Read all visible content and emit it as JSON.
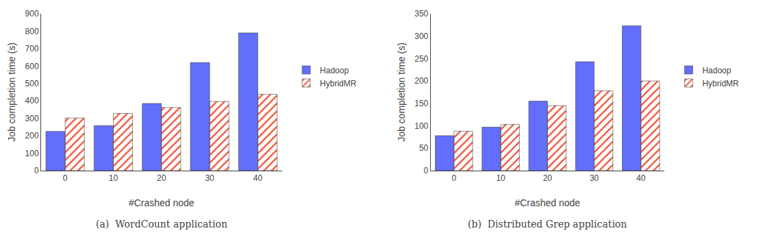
{
  "chart_data": [
    {
      "type": "bar",
      "title": "(a)  WordCount application",
      "categories": [
        0,
        10,
        20,
        30,
        40
      ],
      "xlabel": "#Crashed node",
      "ylabel": "Job completion time (s)",
      "series": [
        {
          "name": "Hadoop",
          "values": [
            225,
            258,
            385,
            620,
            790
          ]
        },
        {
          "name": "HybridMR",
          "values": [
            302,
            328,
            362,
            397,
            438
          ]
        }
      ],
      "ylim": [
        0,
        900
      ],
      "yticks": [
        0,
        100,
        200,
        300,
        400,
        500,
        600,
        700,
        800,
        900
      ],
      "grid": false,
      "legend": "right"
    },
    {
      "type": "bar",
      "title": "(b)  Distributed Grep application",
      "categories": [
        0,
        10,
        20,
        30,
        40
      ],
      "xlabel": "#Crashed node",
      "ylabel": "Job completion time (s)",
      "series": [
        {
          "name": "Hadoop",
          "values": [
            78,
            97,
            155,
            243,
            323
          ]
        },
        {
          "name": "HybridMR",
          "values": [
            88,
            103,
            145,
            178,
            200
          ]
        }
      ],
      "ylim": [
        0,
        350
      ],
      "yticks": [
        0,
        50,
        100,
        150,
        200,
        250,
        300,
        350
      ],
      "grid": false,
      "legend": "right"
    }
  ]
}
